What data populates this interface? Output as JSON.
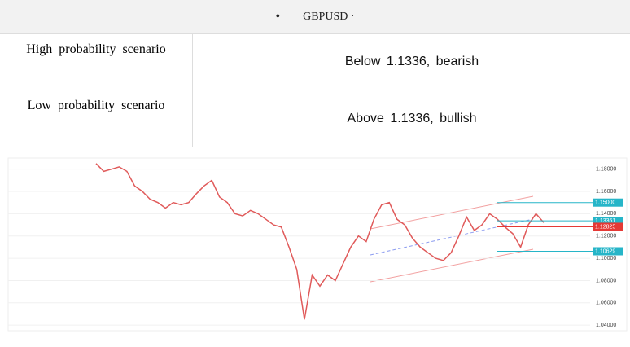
{
  "header": {
    "bullet": "•",
    "title": "GBPUSD ·"
  },
  "table": {
    "rows": [
      [
        "High probability scenario",
        "Below 1.1336, bearish"
      ],
      [
        "Low probability scenario",
        "Above 1.1336, bullish"
      ]
    ]
  },
  "chart": {
    "type": "line",
    "values": [
      1.185,
      1.178,
      1.18,
      1.182,
      1.178,
      1.165,
      1.16,
      1.153,
      1.15,
      1.145,
      1.15,
      1.148,
      1.15,
      1.158,
      1.165,
      1.17,
      1.155,
      1.15,
      1.14,
      1.138,
      1.143,
      1.14,
      1.135,
      1.13,
      1.128,
      1.11,
      1.09,
      1.045,
      1.085,
      1.075,
      1.085,
      1.08,
      1.095,
      1.11,
      1.12,
      1.115,
      1.135,
      1.148,
      1.15,
      1.135,
      1.13,
      1.118,
      1.11,
      1.105,
      1.1,
      1.098,
      1.105,
      1.12,
      1.137,
      1.125,
      1.13,
      1.14,
      1.135,
      1.128,
      1.122,
      1.11,
      1.13,
      1.14,
      1.132
    ],
    "ylim": [
      1.035,
      1.19
    ],
    "yticks": [
      {
        "value": 1.04,
        "label": "1.04000"
      },
      {
        "value": 1.06,
        "label": "1.06000"
      },
      {
        "value": 1.08,
        "label": "1.08000"
      },
      {
        "value": 1.1,
        "label": "1.10000"
      },
      {
        "value": 1.12,
        "label": "1.12000"
      },
      {
        "value": 1.14,
        "label": "1.14000"
      },
      {
        "value": 1.16,
        "label": "1.16000"
      },
      {
        "value": 1.18,
        "label": "1.18000"
      }
    ],
    "price_tags": [
      {
        "value": 1.15,
        "label": "1.15000",
        "color": "#26b5c8"
      },
      {
        "value": 1.13361,
        "label": "1.13361",
        "color": "#26b5c8"
      },
      {
        "value": 1.12825,
        "label": "1.12825",
        "color": "#e53935"
      },
      {
        "value": 1.10629,
        "label": "1.10629",
        "color": "#26b5c8"
      }
    ],
    "color": "#e05a5a",
    "grid": true
  }
}
